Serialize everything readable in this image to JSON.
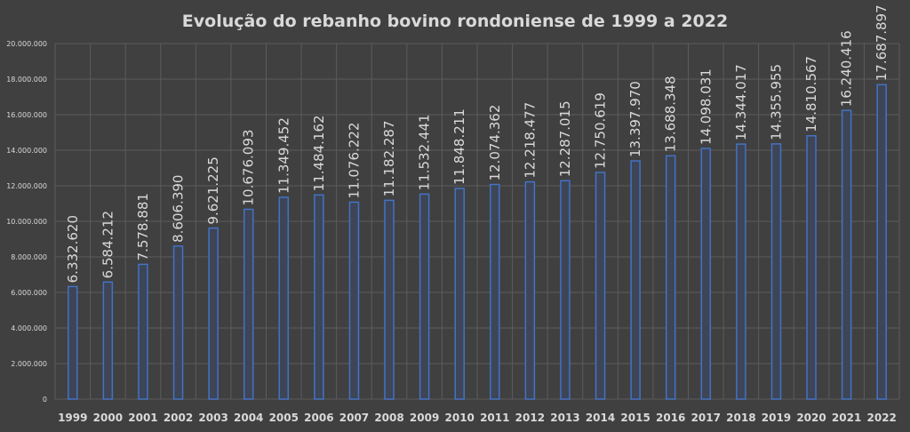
{
  "chart_data": {
    "type": "bar",
    "title": "Evolução do rebanho bovino rondoniense de 1999 a 2022",
    "xlabel": "",
    "ylabel": "",
    "ylim": [
      0,
      20000000
    ],
    "y_tick_step": 2000000,
    "grid": true,
    "legend": "none",
    "colors": {
      "bar_stroke": "#4472c4",
      "bar_fill": "#3d4556",
      "text": "#d9d9d9",
      "grid": "#5c5c5c",
      "background": "#404040"
    },
    "categories": [
      "1999",
      "2000",
      "2001",
      "2002",
      "2003",
      "2004",
      "2005",
      "2006",
      "2007",
      "2008",
      "2009",
      "2010",
      "2011",
      "2012",
      "2013",
      "2014",
      "2015",
      "2016",
      "2017",
      "2018",
      "2019",
      "2020",
      "2021",
      "2022"
    ],
    "values": [
      6332620,
      6584212,
      7578881,
      8606390,
      9621225,
      10676093,
      11349452,
      11484162,
      11076222,
      11182287,
      11532441,
      11848211,
      12074362,
      12218477,
      12287015,
      12750619,
      13397970,
      13688348,
      14098031,
      14344017,
      14355955,
      14810567,
      16240416,
      17687897
    ],
    "y_tick_labels": [
      "0",
      "2.000.000",
      "4.000.000",
      "6.000.000",
      "8.000.000",
      "10.000.000",
      "12.000.000",
      "14.000.000",
      "16.000.000",
      "18.000.000",
      "20.000.000"
    ],
    "data_labels": [
      "6.332.620",
      "6.584.212",
      "7.578.881",
      "8.606.390",
      "9.621.225",
      "10.676.093",
      "11.349.452",
      "11.484.162",
      "11.076.222",
      "11.182.287",
      "11.532.441",
      "11.848.211",
      "12.074.362",
      "12.218.477",
      "12.287.015",
      "12.750.619",
      "13.397.970",
      "13.688.348",
      "14.098.031",
      "14.344.017",
      "14.355.955",
      "14.810.567",
      "16.240.416",
      "17.687.897"
    ]
  }
}
